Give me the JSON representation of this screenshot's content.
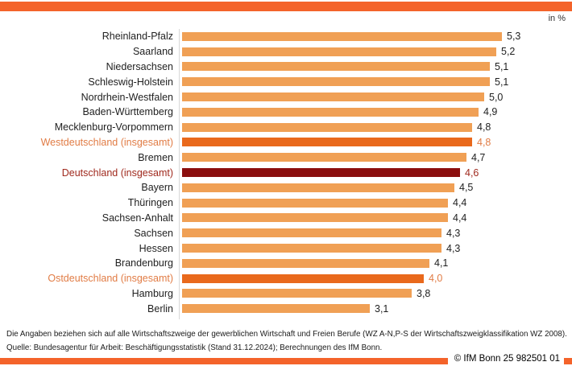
{
  "frame": {
    "unit_label": "in %",
    "copyright": "© IfM Bonn 25 982501 01"
  },
  "footnotes": {
    "line1": "Die Angaben beziehen sich auf alle Wirtschaftszweige der gewerblichen Wirtschaft und Freien Berufe (WZ A-N,P-S der Wirtschaftszweigklassifikation WZ 2008).",
    "line2": "Quelle: Bundesagentur für Arbeit: Beschäftigungsstatistik (Stand 31.12.2024); Berechnungen des IfM Bonn."
  },
  "colors": {
    "frame_bar": "#f4632a",
    "bar_normal": "#f0a055",
    "bar_aggregate_orange": "#e9691c",
    "bar_aggregate_dark_red": "#8b0e0e",
    "text_normal": "#1f1f1f",
    "text_aggregate_orange": "#e17c45",
    "text_aggregate_dark_red": "#a02a1e"
  },
  "chart_data": {
    "type": "bar",
    "orientation": "horizontal",
    "title": "",
    "xlabel": "in %",
    "ylabel": "",
    "xlim": [
      0,
      6.4
    ],
    "grid": false,
    "legend": false,
    "value_format": "german-decimal-comma",
    "rows": [
      {
        "label": "Rheinland-Pfalz",
        "value": 5.3,
        "display": "5,3",
        "style": "normal"
      },
      {
        "label": "Saarland",
        "value": 5.2,
        "display": "5,2",
        "style": "normal"
      },
      {
        "label": "Niedersachsen",
        "value": 5.1,
        "display": "5,1",
        "style": "normal"
      },
      {
        "label": "Schleswig-Holstein",
        "value": 5.1,
        "display": "5,1",
        "style": "normal"
      },
      {
        "label": "Nordrhein-Westfalen",
        "value": 5.0,
        "display": "5,0",
        "style": "normal"
      },
      {
        "label": "Baden-Württemberg",
        "value": 4.9,
        "display": "4,9",
        "style": "normal"
      },
      {
        "label": "Mecklenburg-Vorpommern",
        "value": 4.8,
        "display": "4,8",
        "style": "normal"
      },
      {
        "label": "Westdeutschland (insgesamt)",
        "value": 4.8,
        "display": "4,8",
        "style": "aggregate_orange"
      },
      {
        "label": "Bremen",
        "value": 4.7,
        "display": "4,7",
        "style": "normal"
      },
      {
        "label": "Deutschland (insgesamt)",
        "value": 4.6,
        "display": "4,6",
        "style": "aggregate_dark_red"
      },
      {
        "label": "Bayern",
        "value": 4.5,
        "display": "4,5",
        "style": "normal"
      },
      {
        "label": "Thüringen",
        "value": 4.4,
        "display": "4,4",
        "style": "normal"
      },
      {
        "label": "Sachsen-Anhalt",
        "value": 4.4,
        "display": "4,4",
        "style": "normal"
      },
      {
        "label": "Sachsen",
        "value": 4.3,
        "display": "4,3",
        "style": "normal"
      },
      {
        "label": "Hessen",
        "value": 4.3,
        "display": "4,3",
        "style": "normal"
      },
      {
        "label": "Brandenburg",
        "value": 4.1,
        "display": "4,1",
        "style": "normal"
      },
      {
        "label": "Ostdeutschland (insgesamt)",
        "value": 4.0,
        "display": "4,0",
        "style": "aggregate_orange"
      },
      {
        "label": "Hamburg",
        "value": 3.8,
        "display": "3,8",
        "style": "normal"
      },
      {
        "label": "Berlin",
        "value": 3.1,
        "display": "3,1",
        "style": "normal"
      }
    ]
  }
}
